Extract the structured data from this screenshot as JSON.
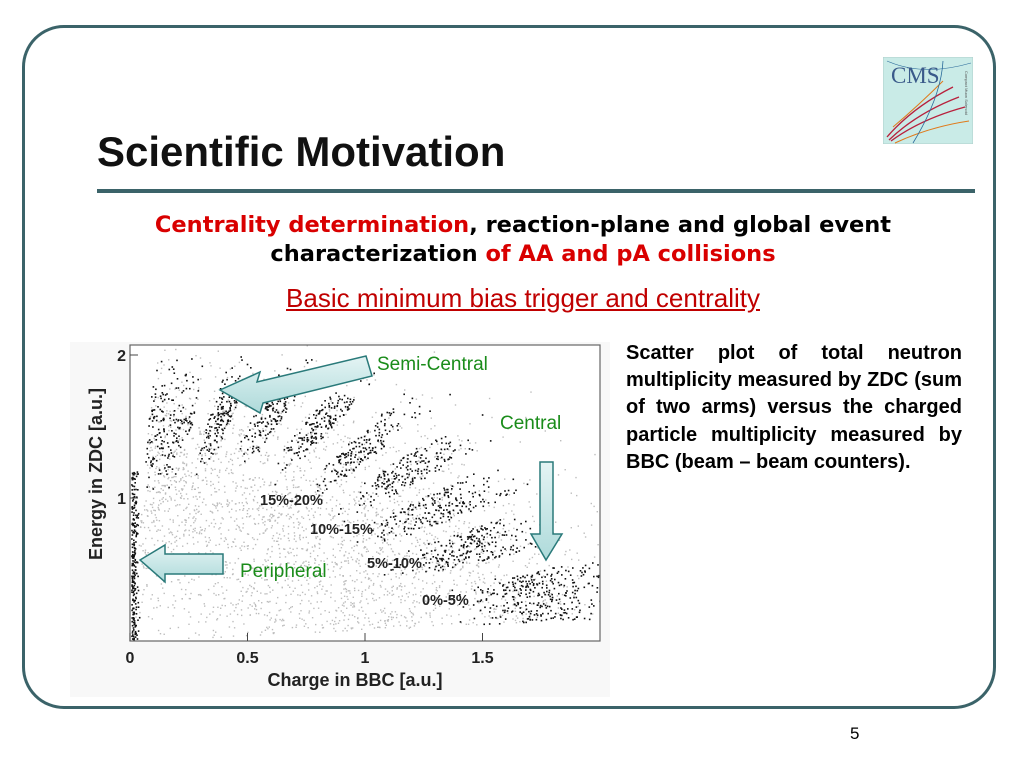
{
  "slide": {
    "title": "Scientific Motivation",
    "subheading": {
      "part1": "Centrality determination",
      "part2": ", reaction-plane and global event characterization ",
      "part3": "of AA and pA collisions"
    },
    "underlined_heading": "Basic minimum bias trigger and centrality",
    "description": "Scatter plot of total neutron multiplicity measured by ZDC (sum of two arms) versus the charged particle multiplicity measured by BBC (beam – beam counters).",
    "page_number": "5",
    "logo_text": "CMS"
  },
  "colors": {
    "frame": "#3b6369",
    "accent_red": "#d90000",
    "heading_red": "#c00000",
    "label_green": "#1a8c1a",
    "arrow_fill": "#c6e6e6"
  },
  "chart_data": {
    "type": "scatter",
    "xlabel": "Charge in BBC [a.u.]",
    "ylabel": "Energy in ZDC [a.u.]",
    "xlim": [
      0,
      2
    ],
    "ylim": [
      0,
      2
    ],
    "x_ticks": [
      "0",
      "0.5",
      "1",
      "1.5"
    ],
    "y_ticks": [
      "1",
      "2"
    ],
    "centrality_labels": [
      "15%-20%",
      "10%-15%",
      "5%-10%",
      "0%-5%"
    ],
    "region_labels": {
      "semi_central": "Semi-Central",
      "central": "Central",
      "peripheral": "Peripheral"
    }
  }
}
